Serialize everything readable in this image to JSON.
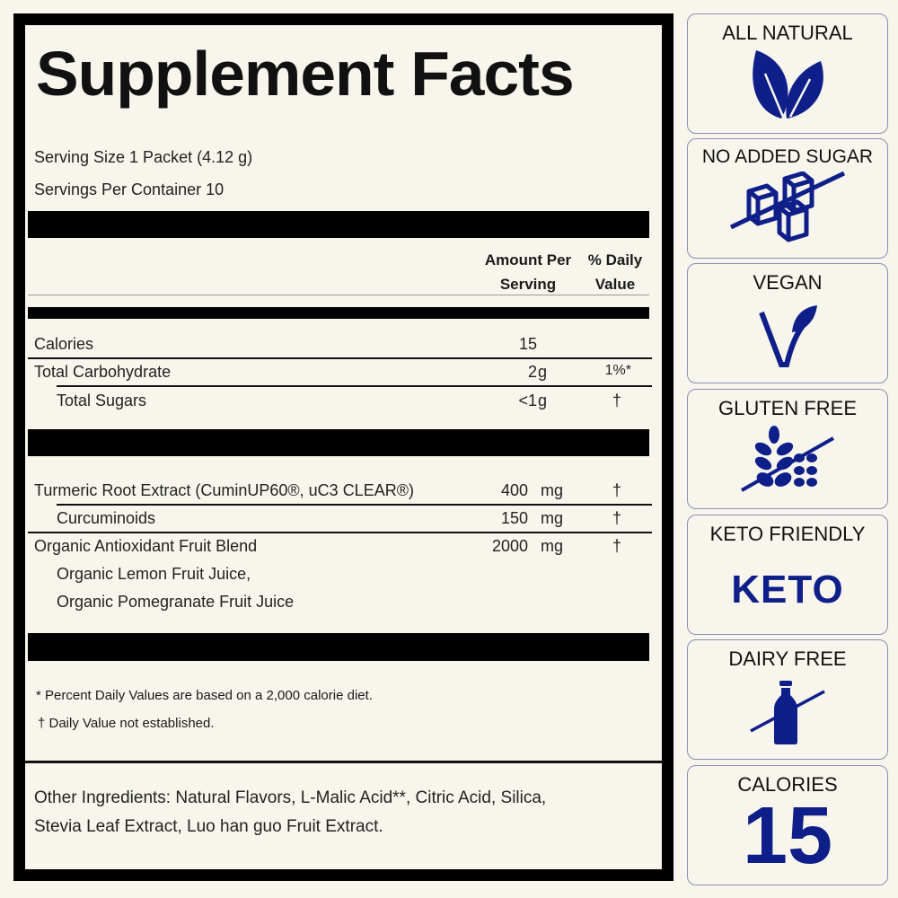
{
  "facts": {
    "title": "Supplement Facts",
    "serving_size": "Serving Size 1 Packet (4.12 g)",
    "servings_per_container": "Servings Per Container 10",
    "header_amount_1": "Amount Per",
    "header_amount_2": "Serving",
    "header_dv_1": "% Daily",
    "header_dv_2": "Value",
    "nutrients": [
      {
        "name": "Calories",
        "amount": "15",
        "unit": "",
        "dv": ""
      },
      {
        "name": "Total Carbohydrate",
        "amount": "2",
        "unit": "g",
        "dv": "1%*"
      },
      {
        "name": "Total Sugars",
        "amount": "<1",
        "unit": "g",
        "dv": "†"
      }
    ],
    "ingredients": [
      {
        "name": "Turmeric Root Extract (CuminUP60®, uC3 CLEAR®)",
        "amount": "400",
        "unit": "mg",
        "dv": "†"
      },
      {
        "name": "Curcuminoids",
        "amount": "150",
        "unit": "mg",
        "dv": "†"
      },
      {
        "name": "Organic Antioxidant Fruit Blend",
        "amount": "2000",
        "unit": "mg",
        "dv": "†"
      }
    ],
    "blend_components": [
      "Organic Lemon Fruit Juice,",
      "Organic Pomegranate Fruit Juice"
    ],
    "footnote_1": "* Percent Daily Values are based on a 2,000 calorie diet.",
    "footnote_2": "† Daily Value not established.",
    "other_ingredients_1": "Other Ingredients: Natural Flavors, L-Malic Acid**, Citric Acid, Silica,",
    "other_ingredients_2": "Stevia Leaf Extract, Luo han guo Fruit Extract."
  },
  "badges": [
    {
      "label": "ALL NATURAL",
      "icon": "leaves-icon"
    },
    {
      "label": "NO ADDED SUGAR",
      "icon": "crossed-sugar-cubes-icon"
    },
    {
      "label": "VEGAN",
      "icon": "vegan-v-icon"
    },
    {
      "label": "GLUTEN FREE",
      "icon": "crossed-wheat-icon"
    },
    {
      "label": "KETO FRIENDLY",
      "icon_text": "KETO"
    },
    {
      "label": "DAIRY FREE",
      "icon": "crossed-milk-bottle-icon"
    },
    {
      "label": "CALORIES",
      "icon_text": "15"
    }
  ],
  "colors": {
    "accent": "#0f1f8a",
    "background": "#f7f5ec",
    "border": "#000000"
  }
}
